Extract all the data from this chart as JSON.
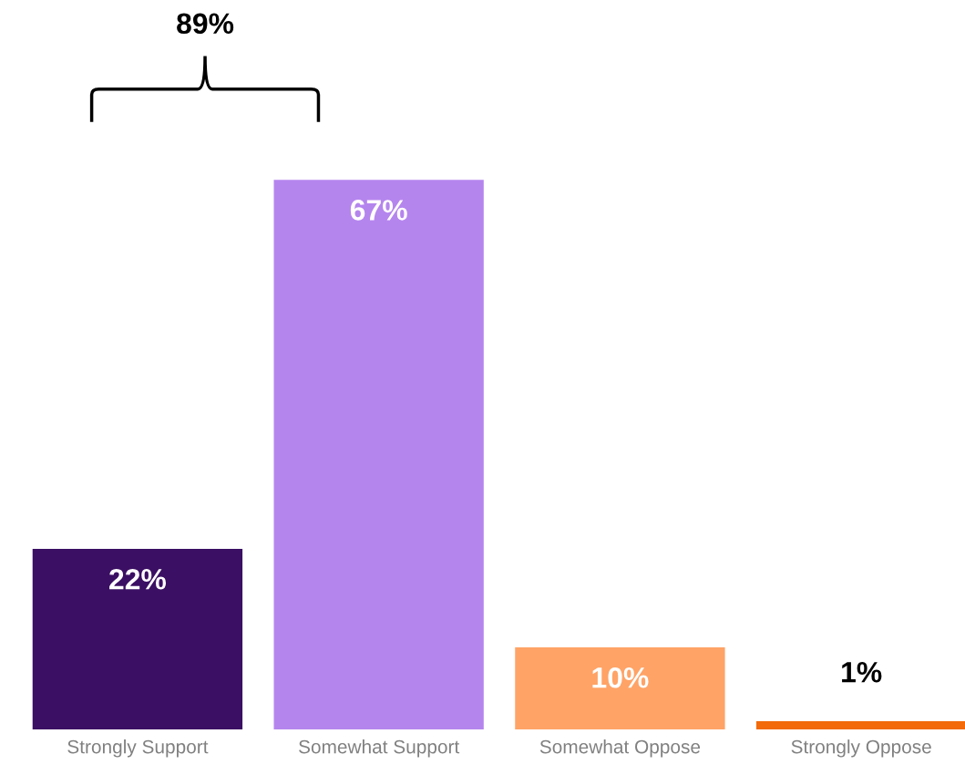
{
  "chart_data": {
    "type": "bar",
    "categories": [
      "Strongly Support",
      "Somewhat Support",
      "Somewhat Oppose",
      "Strongly Oppose"
    ],
    "values": [
      22,
      67,
      10,
      1
    ],
    "colors": [
      "#3b0f63",
      "#b585ee",
      "#ffa366",
      "#f26a0a"
    ],
    "value_labels": [
      "22%",
      "67%",
      "10%",
      "1%"
    ],
    "annotations": [
      "89%"
    ],
    "grid": false,
    "legend": false
  }
}
